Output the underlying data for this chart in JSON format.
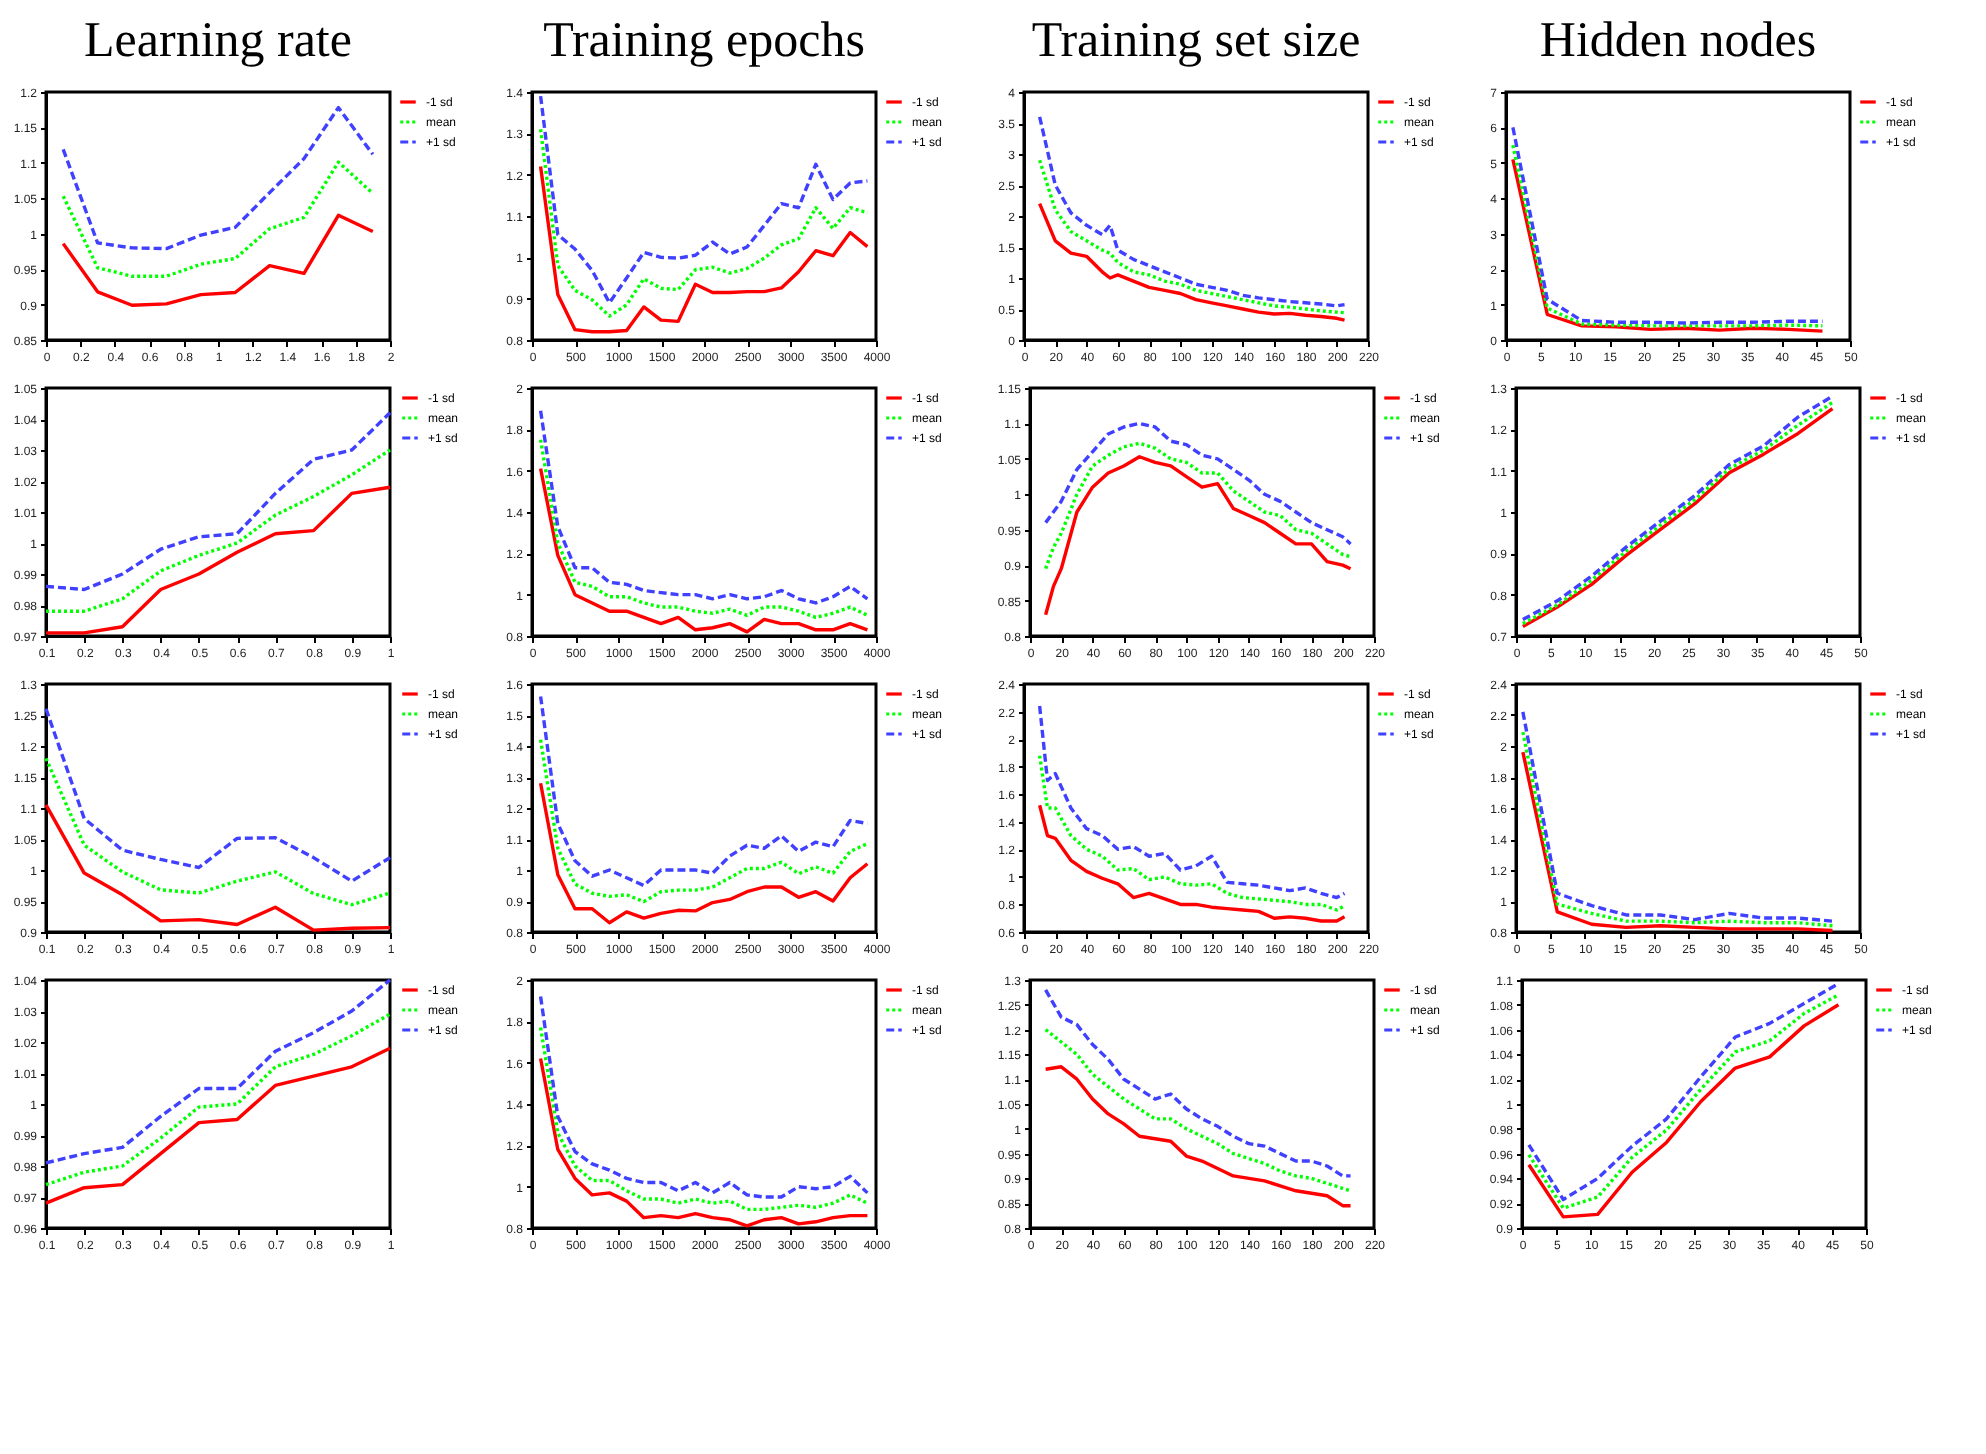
{
  "chart_data": [
    {
      "type": "line",
      "title": "Learning rate",
      "legend": "right",
      "x": [
        0.1,
        0.3,
        0.5,
        0.7,
        0.9,
        1.1,
        1.3,
        1.5,
        1.7,
        1.9
      ],
      "xlim": [
        0,
        2
      ],
      "xticks": [
        0,
        0.2,
        0.4,
        0.6,
        0.8,
        1,
        1.2,
        1.4,
        1.6,
        1.8,
        2
      ],
      "ylim": [
        0.85,
        1.2
      ],
      "yticks": [
        0.85,
        0.9,
        0.95,
        1,
        1.05,
        1.1,
        1.15,
        1.2
      ],
      "series": [
        {
          "name": "-1 sd",
          "color": "#ff0000",
          "line_style": "solid",
          "values": [
            0.986,
            0.918,
            0.899,
            0.901,
            0.914,
            0.917,
            0.955,
            0.944,
            1.026,
            1.003
          ]
        },
        {
          "name": "mean",
          "color": "#00ff00",
          "line_style": "dotted",
          "values": [
            1.053,
            0.952,
            0.94,
            0.94,
            0.957,
            0.965,
            1.007,
            1.023,
            1.101,
            1.057
          ]
        },
        {
          "name": "+1 sd",
          "color": "#4040ff",
          "line_style": "dashed",
          "values": [
            1.119,
            0.987,
            0.98,
            0.979,
            0.998,
            1.009,
            1.058,
            1.106,
            1.178,
            1.112
          ]
        }
      ]
    },
    {
      "type": "line",
      "title": "Training epochs",
      "legend": "right",
      "x": [
        100,
        300,
        500,
        700,
        900,
        1100,
        1300,
        1500,
        1700,
        1900,
        2100,
        2300,
        2500,
        2700,
        2900,
        3100,
        3300,
        3500,
        3700,
        3900
      ],
      "xlim": [
        0,
        4000
      ],
      "xticks": [
        0,
        500,
        1000,
        1500,
        2000,
        2500,
        3000,
        3500,
        4000
      ],
      "ylim": [
        0.8,
        1.4
      ],
      "yticks": [
        0.8,
        0.9,
        1,
        1.1,
        1.2,
        1.3,
        1.4
      ],
      "series": [
        {
          "name": "-1 sd",
          "color": "#ff0000",
          "line_style": "solid",
          "values": [
            1.22,
            0.91,
            0.825,
            0.82,
            0.82,
            0.823,
            0.88,
            0.848,
            0.845,
            0.935,
            0.915,
            0.915,
            0.917,
            0.917,
            0.926,
            0.965,
            1.016,
            1.004,
            1.06,
            1.026
          ]
        },
        {
          "name": "mean",
          "color": "#00ff00",
          "line_style": "dotted",
          "values": [
            1.31,
            0.98,
            0.92,
            0.897,
            0.858,
            0.885,
            0.948,
            0.925,
            0.922,
            0.97,
            0.976,
            0.962,
            0.973,
            0.998,
            1.03,
            1.045,
            1.12,
            1.07,
            1.12,
            1.108
          ]
        },
        {
          "name": "+1 sd",
          "color": "#4040ff",
          "line_style": "dashed",
          "values": [
            1.39,
            1.055,
            1.02,
            0.968,
            0.89,
            0.95,
            1.012,
            1.0,
            0.998,
            1.005,
            1.037,
            1.008,
            1.025,
            1.077,
            1.13,
            1.12,
            1.225,
            1.14,
            1.18,
            1.185
          ]
        }
      ]
    },
    {
      "type": "line",
      "title": "Training set size",
      "legend": "right",
      "x": [
        10,
        20,
        30,
        40,
        50,
        55,
        60,
        70,
        80,
        90,
        100,
        110,
        120,
        130,
        140,
        150,
        160,
        170,
        180,
        190,
        200,
        205
      ],
      "xlim": [
        0,
        220
      ],
      "xticks": [
        0,
        20,
        40,
        60,
        80,
        100,
        120,
        140,
        160,
        180,
        200,
        220
      ],
      "ylim": [
        0,
        4
      ],
      "yticks": [
        0,
        0.5,
        1,
        1.5,
        2,
        2.5,
        3,
        3.5,
        4
      ],
      "series": [
        {
          "name": "-1 sd",
          "color": "#ff0000",
          "line_style": "solid",
          "values": [
            2.2,
            1.6,
            1.4,
            1.35,
            1.1,
            1.0,
            1.05,
            0.95,
            0.85,
            0.8,
            0.75,
            0.65,
            0.6,
            0.55,
            0.5,
            0.45,
            0.42,
            0.43,
            0.4,
            0.38,
            0.35,
            0.32
          ]
        },
        {
          "name": "mean",
          "color": "#00ff00",
          "line_style": "dotted",
          "values": [
            2.9,
            2.1,
            1.75,
            1.6,
            1.45,
            1.4,
            1.25,
            1.1,
            1.05,
            0.95,
            0.9,
            0.8,
            0.75,
            0.7,
            0.65,
            0.6,
            0.55,
            0.53,
            0.5,
            0.47,
            0.45,
            0.44
          ]
        },
        {
          "name": "+1 sd",
          "color": "#4040ff",
          "line_style": "dashed",
          "values": [
            3.6,
            2.5,
            2.05,
            1.85,
            1.7,
            1.85,
            1.45,
            1.3,
            1.2,
            1.1,
            1.0,
            0.9,
            0.85,
            0.8,
            0.72,
            0.68,
            0.65,
            0.62,
            0.6,
            0.58,
            0.55,
            0.57
          ]
        }
      ]
    },
    {
      "type": "line",
      "title": "Hidden nodes",
      "legend": "right",
      "x": [
        1,
        6,
        11,
        16,
        21,
        26,
        31,
        36,
        41,
        46
      ],
      "xlim": [
        0,
        50
      ],
      "xticks": [
        0,
        5,
        10,
        15,
        20,
        25,
        30,
        35,
        40,
        45,
        50
      ],
      "ylim": [
        0,
        7
      ],
      "yticks": [
        0,
        1,
        2,
        3,
        4,
        5,
        6,
        7
      ],
      "series": [
        {
          "name": "-1 sd",
          "color": "#ff0000",
          "line_style": "solid",
          "values": [
            5.1,
            0.72,
            0.4,
            0.37,
            0.3,
            0.33,
            0.28,
            0.33,
            0.3,
            0.25
          ]
        },
        {
          "name": "mean",
          "color": "#00ff00",
          "line_style": "dotted",
          "values": [
            5.5,
            0.9,
            0.45,
            0.42,
            0.4,
            0.4,
            0.4,
            0.4,
            0.42,
            0.4
          ]
        },
        {
          "name": "+1 sd",
          "color": "#4040ff",
          "line_style": "dashed",
          "values": [
            6.0,
            1.15,
            0.55,
            0.5,
            0.5,
            0.48,
            0.5,
            0.5,
            0.53,
            0.53
          ]
        }
      ]
    },
    {
      "type": "line",
      "legend": "right",
      "x": [
        0.1,
        0.2,
        0.3,
        0.4,
        0.5,
        0.6,
        0.7,
        0.8,
        0.9,
        1
      ],
      "xlim": [
        0.1,
        1
      ],
      "xticks": [
        0.1,
        0.2,
        0.3,
        0.4,
        0.5,
        0.6,
        0.7,
        0.8,
        0.9,
        1
      ],
      "ylim": [
        0.97,
        1.05
      ],
      "yticks": [
        0.97,
        0.98,
        0.99,
        1,
        1.01,
        1.02,
        1.03,
        1.04,
        1.05
      ],
      "series": [
        {
          "name": "-1 sd",
          "color": "#ff0000",
          "line_style": "solid",
          "values": [
            0.971,
            0.971,
            0.973,
            0.985,
            0.99,
            0.997,
            1.003,
            1.004,
            1.016,
            1.018
          ]
        },
        {
          "name": "mean",
          "color": "#00ff00",
          "line_style": "dotted",
          "values": [
            0.978,
            0.978,
            0.982,
            0.991,
            0.996,
            1.0,
            1.009,
            1.015,
            1.022,
            1.03
          ]
        },
        {
          "name": "+1 sd",
          "color": "#4040ff",
          "line_style": "dashed",
          "values": [
            0.986,
            0.985,
            0.99,
            0.998,
            1.002,
            1.003,
            1.016,
            1.027,
            1.03,
            1.042
          ]
        }
      ]
    },
    {
      "type": "line",
      "legend": "right",
      "x": [
        100,
        300,
        500,
        700,
        900,
        1100,
        1300,
        1500,
        1700,
        1900,
        2100,
        2300,
        2500,
        2700,
        2900,
        3100,
        3300,
        3500,
        3700,
        3900
      ],
      "xlim": [
        0,
        4000
      ],
      "xticks": [
        0,
        500,
        1000,
        1500,
        2000,
        2500,
        3000,
        3500,
        4000
      ],
      "ylim": [
        0.8,
        2
      ],
      "yticks": [
        0.8,
        1,
        1.2,
        1.4,
        1.6,
        1.8,
        2
      ],
      "series": [
        {
          "name": "-1 sd",
          "color": "#ff0000",
          "line_style": "solid",
          "values": [
            1.61,
            1.19,
            1.0,
            0.96,
            0.92,
            0.92,
            0.89,
            0.86,
            0.89,
            0.83,
            0.84,
            0.86,
            0.82,
            0.88,
            0.86,
            0.86,
            0.83,
            0.83,
            0.86,
            0.83
          ]
        },
        {
          "name": "mean",
          "color": "#00ff00",
          "line_style": "dotted",
          "values": [
            1.75,
            1.25,
            1.06,
            1.04,
            0.99,
            0.99,
            0.96,
            0.94,
            0.94,
            0.92,
            0.91,
            0.93,
            0.9,
            0.94,
            0.94,
            0.92,
            0.89,
            0.91,
            0.94,
            0.9
          ]
        },
        {
          "name": "+1 sd",
          "color": "#4040ff",
          "line_style": "dashed",
          "values": [
            1.89,
            1.33,
            1.13,
            1.13,
            1.06,
            1.05,
            1.02,
            1.01,
            1.0,
            1.0,
            0.98,
            1.0,
            0.98,
            0.99,
            1.02,
            0.98,
            0.96,
            0.99,
            1.04,
            0.98
          ]
        }
      ]
    },
    {
      "type": "line",
      "legend": "right",
      "x": [
        10,
        15,
        20,
        30,
        40,
        50,
        60,
        70,
        80,
        90,
        100,
        110,
        120,
        130,
        140,
        150,
        160,
        170,
        180,
        190,
        200,
        205
      ],
      "xlim": [
        0,
        220
      ],
      "xticks": [
        0,
        20,
        40,
        60,
        80,
        100,
        120,
        140,
        160,
        180,
        200,
        220
      ],
      "ylim": [
        0.8,
        1.15
      ],
      "yticks": [
        0.8,
        0.85,
        0.9,
        0.95,
        1,
        1.05,
        1.1,
        1.15
      ],
      "series": [
        {
          "name": "-1 sd",
          "color": "#ff0000",
          "line_style": "solid",
          "values": [
            0.83,
            0.87,
            0.895,
            0.975,
            1.01,
            1.03,
            1.04,
            1.053,
            1.045,
            1.04,
            1.025,
            1.01,
            1.015,
            0.98,
            0.97,
            0.96,
            0.945,
            0.93,
            0.93,
            0.905,
            0.9,
            0.895
          ]
        },
        {
          "name": "mean",
          "color": "#00ff00",
          "line_style": "dotted",
          "values": [
            0.895,
            0.925,
            0.945,
            1.0,
            1.04,
            1.055,
            1.067,
            1.072,
            1.065,
            1.05,
            1.045,
            1.03,
            1.03,
            1.005,
            0.99,
            0.975,
            0.97,
            0.95,
            0.945,
            0.93,
            0.915,
            0.912
          ]
        },
        {
          "name": "+1 sd",
          "color": "#4040ff",
          "line_style": "dashed",
          "values": [
            0.96,
            0.975,
            0.99,
            1.035,
            1.06,
            1.085,
            1.095,
            1.1,
            1.095,
            1.075,
            1.07,
            1.055,
            1.05,
            1.035,
            1.02,
            1.0,
            0.99,
            0.975,
            0.96,
            0.95,
            0.94,
            0.93
          ]
        }
      ]
    },
    {
      "type": "line",
      "legend": "right",
      "x": [
        1,
        6,
        11,
        16,
        21,
        26,
        31,
        36,
        41,
        46
      ],
      "xlim": [
        0,
        50
      ],
      "xticks": [
        0,
        5,
        10,
        15,
        20,
        25,
        30,
        35,
        40,
        45,
        50
      ],
      "ylim": [
        0.7,
        1.3
      ],
      "yticks": [
        0.7,
        0.8,
        0.9,
        1,
        1.1,
        1.2,
        1.3
      ],
      "series": [
        {
          "name": "-1 sd",
          "color": "#ff0000",
          "line_style": "solid",
          "values": [
            0.723,
            0.77,
            0.825,
            0.895,
            0.958,
            1.02,
            1.095,
            1.14,
            1.19,
            1.25
          ]
        },
        {
          "name": "mean",
          "color": "#00ff00",
          "line_style": "dotted",
          "values": [
            0.73,
            0.775,
            0.835,
            0.905,
            0.968,
            1.03,
            1.105,
            1.15,
            1.21,
            1.265
          ]
        },
        {
          "name": "+1 sd",
          "color": "#4040ff",
          "line_style": "dashed",
          "values": [
            0.74,
            0.785,
            0.845,
            0.915,
            0.978,
            1.04,
            1.115,
            1.16,
            1.23,
            1.28
          ]
        }
      ]
    },
    {
      "type": "line",
      "legend": "right",
      "x": [
        0.1,
        0.2,
        0.3,
        0.4,
        0.5,
        0.6,
        0.7,
        0.8,
        0.9,
        1
      ],
      "xlim": [
        0.1,
        1
      ],
      "xticks": [
        0.1,
        0.2,
        0.3,
        0.4,
        0.5,
        0.6,
        0.7,
        0.8,
        0.9,
        1
      ],
      "ylim": [
        0.9,
        1.3
      ],
      "yticks": [
        0.9,
        0.95,
        1,
        1.05,
        1.1,
        1.15,
        1.2,
        1.25,
        1.3
      ],
      "series": [
        {
          "name": "-1 sd",
          "color": "#ff0000",
          "line_style": "solid",
          "values": [
            1.105,
            0.995,
            0.96,
            0.918,
            0.92,
            0.912,
            0.94,
            0.903,
            0.906,
            0.907
          ]
        },
        {
          "name": "mean",
          "color": "#00ff00",
          "line_style": "dotted",
          "values": [
            1.18,
            1.04,
            0.997,
            0.968,
            0.963,
            0.982,
            0.997,
            0.962,
            0.944,
            0.963
          ]
        },
        {
          "name": "+1 sd",
          "color": "#4040ff",
          "line_style": "dashed",
          "values": [
            1.26,
            1.083,
            1.032,
            1.017,
            1.004,
            1.051,
            1.052,
            1.02,
            0.982,
            1.02
          ]
        }
      ]
    },
    {
      "type": "line",
      "legend": "right",
      "x": [
        100,
        300,
        500,
        700,
        900,
        1100,
        1300,
        1500,
        1700,
        1900,
        2100,
        2300,
        2500,
        2700,
        2900,
        3100,
        3300,
        3500,
        3700,
        3900
      ],
      "xlim": [
        0,
        4000
      ],
      "xticks": [
        0,
        500,
        1000,
        1500,
        2000,
        2500,
        3000,
        3500,
        4000
      ],
      "ylim": [
        0.8,
        1.6
      ],
      "yticks": [
        0.8,
        0.9,
        1,
        1.1,
        1.2,
        1.3,
        1.4,
        1.5,
        1.6
      ],
      "series": [
        {
          "name": "-1 sd",
          "color": "#ff0000",
          "line_style": "solid",
          "values": [
            1.28,
            0.985,
            0.875,
            0.875,
            0.83,
            0.865,
            0.845,
            0.86,
            0.87,
            0.868,
            0.895,
            0.905,
            0.93,
            0.945,
            0.945,
            0.912,
            0.93,
            0.9,
            0.975,
            1.02
          ]
        },
        {
          "name": "mean",
          "color": "#00ff00",
          "line_style": "dotted",
          "values": [
            1.42,
            1.07,
            0.955,
            0.925,
            0.915,
            0.92,
            0.898,
            0.93,
            0.935,
            0.935,
            0.945,
            0.975,
            1.005,
            1.005,
            1.025,
            0.988,
            1.01,
            0.99,
            1.06,
            1.085
          ]
        },
        {
          "name": "+1 sd",
          "color": "#4040ff",
          "line_style": "dashed",
          "values": [
            1.56,
            1.15,
            1.03,
            0.98,
            1.0,
            0.975,
            0.95,
            1.0,
            1.0,
            1.0,
            0.99,
            1.045,
            1.08,
            1.07,
            1.11,
            1.06,
            1.09,
            1.075,
            1.16,
            1.15
          ]
        }
      ]
    },
    {
      "type": "line",
      "legend": "right",
      "x": [
        10,
        15,
        20,
        30,
        40,
        50,
        60,
        70,
        80,
        90,
        100,
        110,
        120,
        130,
        140,
        150,
        160,
        170,
        180,
        190,
        200,
        205
      ],
      "xlim": [
        0,
        220
      ],
      "xticks": [
        0,
        20,
        40,
        60,
        80,
        100,
        120,
        140,
        160,
        180,
        200,
        220
      ],
      "ylim": [
        0.6,
        2.4
      ],
      "yticks": [
        0.6,
        0.8,
        1,
        1.2,
        1.4,
        1.6,
        1.8,
        2,
        2.2,
        2.4
      ],
      "series": [
        {
          "name": "-1 sd",
          "color": "#ff0000",
          "line_style": "solid",
          "values": [
            1.52,
            1.3,
            1.28,
            1.12,
            1.04,
            0.99,
            0.95,
            0.85,
            0.88,
            0.84,
            0.8,
            0.8,
            0.78,
            0.77,
            0.76,
            0.75,
            0.7,
            0.71,
            0.7,
            0.68,
            0.68,
            0.71
          ]
        },
        {
          "name": "mean",
          "color": "#00ff00",
          "line_style": "dotted",
          "values": [
            1.88,
            1.5,
            1.5,
            1.3,
            1.2,
            1.15,
            1.05,
            1.06,
            0.98,
            1.0,
            0.95,
            0.94,
            0.95,
            0.88,
            0.85,
            0.84,
            0.83,
            0.82,
            0.8,
            0.8,
            0.76,
            0.79
          ]
        },
        {
          "name": "+1 sd",
          "color": "#4040ff",
          "line_style": "dashed",
          "values": [
            2.24,
            1.7,
            1.75,
            1.5,
            1.35,
            1.3,
            1.2,
            1.22,
            1.15,
            1.17,
            1.05,
            1.08,
            1.15,
            0.96,
            0.95,
            0.94,
            0.92,
            0.9,
            0.92,
            0.88,
            0.85,
            0.88
          ]
        }
      ]
    },
    {
      "type": "line",
      "legend": "right",
      "x": [
        1,
        6,
        11,
        16,
        21,
        26,
        31,
        36,
        41,
        46
      ],
      "xlim": [
        0,
        50
      ],
      "xticks": [
        0,
        5,
        10,
        15,
        20,
        25,
        30,
        35,
        40,
        45,
        50
      ],
      "ylim": [
        0.8,
        2.4
      ],
      "yticks": [
        0.8,
        1,
        1.2,
        1.4,
        1.6,
        1.8,
        2,
        2.2,
        2.4
      ],
      "series": [
        {
          "name": "-1 sd",
          "color": "#ff0000",
          "line_style": "solid",
          "values": [
            1.96,
            0.93,
            0.85,
            0.83,
            0.84,
            0.83,
            0.82,
            0.82,
            0.82,
            0.81
          ]
        },
        {
          "name": "mean",
          "color": "#00ff00",
          "line_style": "dotted",
          "values": [
            2.09,
            0.98,
            0.92,
            0.87,
            0.87,
            0.86,
            0.87,
            0.86,
            0.86,
            0.84
          ]
        },
        {
          "name": "+1 sd",
          "color": "#4040ff",
          "line_style": "dashed",
          "values": [
            2.22,
            1.05,
            0.97,
            0.91,
            0.91,
            0.88,
            0.92,
            0.89,
            0.89,
            0.87
          ]
        }
      ]
    },
    {
      "type": "line",
      "legend": "right",
      "x": [
        0.1,
        0.2,
        0.3,
        0.4,
        0.5,
        0.6,
        0.7,
        0.8,
        0.9,
        1
      ],
      "xlim": [
        0.1,
        1
      ],
      "xticks": [
        0.1,
        0.2,
        0.3,
        0.4,
        0.5,
        0.6,
        0.7,
        0.8,
        0.9,
        1
      ],
      "ylim": [
        0.96,
        1.04
      ],
      "yticks": [
        0.96,
        0.97,
        0.98,
        0.99,
        1,
        1.01,
        1.02,
        1.03,
        1.04
      ],
      "series": [
        {
          "name": "-1 sd",
          "color": "#ff0000",
          "line_style": "solid",
          "values": [
            0.968,
            0.973,
            0.974,
            0.984,
            0.994,
            0.995,
            1.006,
            1.009,
            1.012,
            1.018
          ]
        },
        {
          "name": "mean",
          "color": "#00ff00",
          "line_style": "dotted",
          "values": [
            0.974,
            0.978,
            0.98,
            0.989,
            0.999,
            1.0,
            1.012,
            1.016,
            1.022,
            1.029
          ]
        },
        {
          "name": "+1 sd",
          "color": "#4040ff",
          "line_style": "dashed",
          "values": [
            0.981,
            0.984,
            0.986,
            0.996,
            1.005,
            1.005,
            1.017,
            1.023,
            1.03,
            1.04
          ]
        }
      ]
    },
    {
      "type": "line",
      "legend": "right",
      "x": [
        100,
        300,
        500,
        700,
        900,
        1100,
        1300,
        1500,
        1700,
        1900,
        2100,
        2300,
        2500,
        2700,
        2900,
        3100,
        3300,
        3500,
        3700,
        3900
      ],
      "xlim": [
        0,
        4000
      ],
      "xticks": [
        0,
        500,
        1000,
        1500,
        2000,
        2500,
        3000,
        3500,
        4000
      ],
      "ylim": [
        0.8,
        2
      ],
      "yticks": [
        0.8,
        1,
        1.2,
        1.4,
        1.6,
        1.8,
        2
      ],
      "series": [
        {
          "name": "-1 sd",
          "color": "#ff0000",
          "line_style": "solid",
          "values": [
            1.62,
            1.18,
            1.04,
            0.96,
            0.97,
            0.93,
            0.85,
            0.86,
            0.85,
            0.87,
            0.85,
            0.84,
            0.81,
            0.84,
            0.85,
            0.82,
            0.83,
            0.85,
            0.86,
            0.86
          ]
        },
        {
          "name": "mean",
          "color": "#00ff00",
          "line_style": "dotted",
          "values": [
            1.77,
            1.26,
            1.1,
            1.03,
            1.03,
            0.98,
            0.94,
            0.94,
            0.92,
            0.94,
            0.92,
            0.93,
            0.89,
            0.89,
            0.9,
            0.91,
            0.9,
            0.92,
            0.96,
            0.92
          ]
        },
        {
          "name": "+1 sd",
          "color": "#4040ff",
          "line_style": "dashed",
          "values": [
            1.92,
            1.34,
            1.17,
            1.11,
            1.08,
            1.04,
            1.02,
            1.02,
            0.98,
            1.02,
            0.97,
            1.02,
            0.96,
            0.95,
            0.95,
            1.0,
            0.99,
            1.0,
            1.05,
            0.97
          ]
        }
      ]
    },
    {
      "type": "line",
      "legend": "right",
      "x": [
        10,
        20,
        30,
        40,
        50,
        60,
        70,
        80,
        90,
        100,
        110,
        120,
        130,
        140,
        150,
        160,
        170,
        180,
        190,
        200,
        205
      ],
      "xlim": [
        0,
        220
      ],
      "xticks": [
        0,
        20,
        40,
        60,
        80,
        100,
        120,
        140,
        160,
        180,
        200,
        220
      ],
      "ylim": [
        0.8,
        1.3
      ],
      "yticks": [
        0.8,
        0.85,
        0.9,
        0.95,
        1,
        1.05,
        1.1,
        1.15,
        1.2,
        1.25,
        1.3
      ],
      "series": [
        {
          "name": "-1 sd",
          "color": "#ff0000",
          "line_style": "solid",
          "values": [
            1.12,
            1.125,
            1.1,
            1.06,
            1.03,
            1.01,
            0.985,
            0.98,
            0.975,
            0.945,
            0.935,
            0.92,
            0.905,
            0.9,
            0.895,
            0.885,
            0.875,
            0.87,
            0.865,
            0.845,
            0.845
          ]
        },
        {
          "name": "mean",
          "color": "#00ff00",
          "line_style": "dotted",
          "values": [
            1.2,
            1.175,
            1.15,
            1.11,
            1.085,
            1.06,
            1.04,
            1.02,
            1.02,
            1.0,
            0.985,
            0.97,
            0.95,
            0.94,
            0.93,
            0.915,
            0.905,
            0.9,
            0.89,
            0.88,
            0.875
          ]
        },
        {
          "name": "+1 sd",
          "color": "#4040ff",
          "line_style": "dashed",
          "values": [
            1.28,
            1.225,
            1.21,
            1.17,
            1.14,
            1.1,
            1.08,
            1.06,
            1.07,
            1.04,
            1.02,
            1.005,
            0.985,
            0.97,
            0.965,
            0.95,
            0.935,
            0.935,
            0.925,
            0.905,
            0.905
          ]
        }
      ]
    },
    {
      "type": "line",
      "legend": "right",
      "x": [
        1,
        6,
        11,
        16,
        21,
        26,
        31,
        36,
        41,
        46
      ],
      "xlim": [
        0,
        50
      ],
      "xticks": [
        0,
        5,
        10,
        15,
        20,
        25,
        30,
        35,
        40,
        45,
        50
      ],
      "ylim": [
        0.9,
        1.1
      ],
      "yticks": [
        0.9,
        0.92,
        0.94,
        0.96,
        0.98,
        1,
        1.02,
        1.04,
        1.06,
        1.08,
        1.1
      ],
      "series": [
        {
          "name": "-1 sd",
          "color": "#ff0000",
          "line_style": "solid",
          "values": [
            0.951,
            0.909,
            0.911,
            0.945,
            0.969,
            1.002,
            1.029,
            1.038,
            1.063,
            1.08
          ]
        },
        {
          "name": "mean",
          "color": "#00ff00",
          "line_style": "dotted",
          "values": [
            0.959,
            0.916,
            0.925,
            0.957,
            0.979,
            1.012,
            1.042,
            1.051,
            1.073,
            1.088
          ]
        },
        {
          "name": "+1 sd",
          "color": "#4040ff",
          "line_style": "dashed",
          "values": [
            0.967,
            0.923,
            0.94,
            0.966,
            0.988,
            1.022,
            1.054,
            1.065,
            1.081,
            1.097
          ]
        }
      ]
    }
  ]
}
